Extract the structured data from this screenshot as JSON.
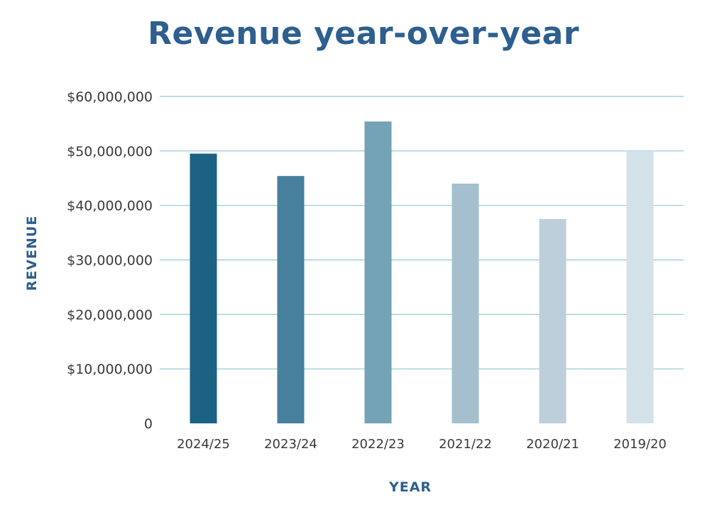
{
  "chart_data": {
    "type": "bar",
    "title": "Revenue year-over-year",
    "xlabel": "YEAR",
    "ylabel": "REVENUE",
    "categories": [
      "2024/25",
      "2023/24",
      "2022/23",
      "2021/22",
      "2020/21",
      "2019/20"
    ],
    "values": [
      49500000,
      45400000,
      55400000,
      44000000,
      37500000,
      50000000
    ],
    "ylim": [
      0,
      60000000
    ],
    "yticks": [
      0,
      10000000,
      20000000,
      30000000,
      40000000,
      50000000,
      60000000
    ],
    "ytick_labels": [
      "0",
      "$10,000,000",
      "$20,000,000",
      "$30,000,000",
      "$40,000,000",
      "$50,000,000",
      "$60,000,000"
    ],
    "grid": true,
    "bar_colors": [
      "#1b6283",
      "#47809c",
      "#74a2b6",
      "#a5bfce",
      "#bccfdb",
      "#d3e1e9"
    ],
    "grid_color": "#8fc9d4",
    "title_color": "#2d5f8f"
  }
}
